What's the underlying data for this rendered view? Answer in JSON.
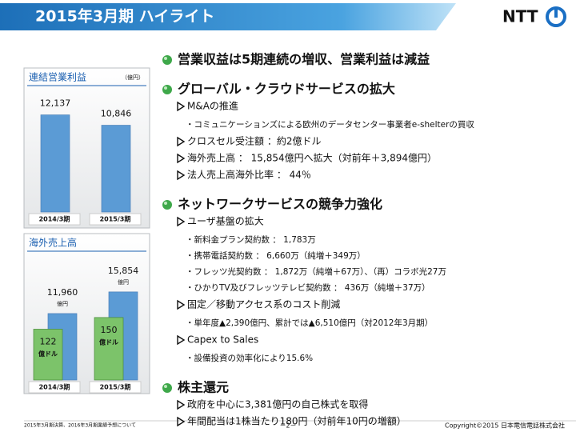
{
  "header": {
    "title": "2015年3月期 ハイライト",
    "logo": "NTT"
  },
  "charts": [
    {
      "type": "bar",
      "title": "連結営業利益",
      "unit": "（億円）",
      "categories": [
        "2014/3期",
        "2015/3期"
      ],
      "series": [
        {
          "values": [
            12137,
            10846
          ],
          "value_labels": [
            "12,137",
            "10,846"
          ],
          "color": "#5b9bd5"
        }
      ],
      "ylim": [
        0,
        15000
      ]
    },
    {
      "type": "bar",
      "title": "海外売上高",
      "categories": [
        "2014/3期",
        "2015/3期"
      ],
      "series": [
        {
          "values": [
            11960,
            15854
          ],
          "value_labels": [
            "11,960",
            "15,854"
          ],
          "unit": "億円",
          "color": "#5b9bd5"
        },
        {
          "values": [
            122,
            150
          ],
          "unit": "億ドル",
          "color": "#7cc36a",
          "axis": "y2"
        }
      ],
      "ylim": [
        0,
        18000
      ],
      "y2lim": [
        0,
        240
      ]
    }
  ],
  "sections": [
    {
      "heading": "営業収益は5期連続の増収、営業利益は減益",
      "items": []
    },
    {
      "heading": "グローバル・クラウドサービスの拡大",
      "items": [
        {
          "text": "M&Aの推進",
          "subs": [
            "・コミュニケーションズによる欧州のデータセンター事業者e-shelterの買収"
          ]
        },
        {
          "text": "クロスセル受注額 ：約2億ドル",
          "subs": []
        },
        {
          "text": "海外売上高 ： 15,854億円へ拡大（対前年＋3,894億円）",
          "subs": []
        },
        {
          "text": "法人売上高海外比率 ： 44％",
          "subs": []
        }
      ]
    },
    {
      "heading": "ネットワークサービスの競争力強化",
      "items": [
        {
          "text": "ユーザ基盤の拡大",
          "subs": [
            "・新料金プラン契約数 ： 1,783万",
            "・携帯電話契約数 ： 6,660万（純増＋349万）",
            "・フレッツ光契約数 ： 1,872万（純増＋67万）、（再）コラボ光27万",
            "・ひかりTV及びフレッツテレビ契約数 ： 436万（純増＋37万）"
          ]
        },
        {
          "text": "固定／移動アクセス系のコスト削減",
          "subs": [
            "・単年度▲2,390億円、累計では▲6,510億円（対2012年3月期）"
          ]
        },
        {
          "text": "Capex to Sales",
          "subs": [
            "・設備投資の効率化により15.6%"
          ]
        }
      ]
    },
    {
      "heading": "株主還元",
      "items": [
        {
          "text": "政府を中心に3,381億円の自己株式を取得",
          "subs": []
        },
        {
          "text": "年間配当は1株当たり180円（対前年10円の増額）",
          "subs": []
        }
      ]
    }
  ],
  "footer": {
    "left": "2015年3月期決算、2016年3月期業績予想について",
    "page": "－2－",
    "right": "Copyright©2015 日本電信電話株式会社"
  }
}
